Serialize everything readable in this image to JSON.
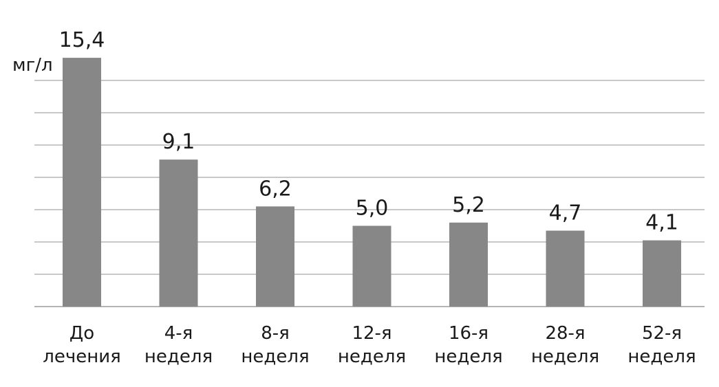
{
  "chart_data": {
    "type": "bar",
    "unit_label": "мг/л",
    "categories": [
      [
        "До",
        "лечения"
      ],
      [
        "4-я",
        "неделя"
      ],
      [
        "8-я",
        "неделя"
      ],
      [
        "12-я",
        "неделя"
      ],
      [
        "16-я",
        "неделя"
      ],
      [
        "28-я",
        "неделя"
      ],
      [
        "52-я",
        "неделя"
      ]
    ],
    "values": [
      15.4,
      9.1,
      6.2,
      5.0,
      5.2,
      4.7,
      4.1
    ],
    "value_labels": [
      "15,4",
      "9,1",
      "6,2",
      "5,0",
      "5,2",
      "4,7",
      "4,1"
    ],
    "ylim": [
      0,
      14
    ],
    "grid": true,
    "colors": {
      "bar": "#878787",
      "grid": "#c8c8c8"
    }
  }
}
